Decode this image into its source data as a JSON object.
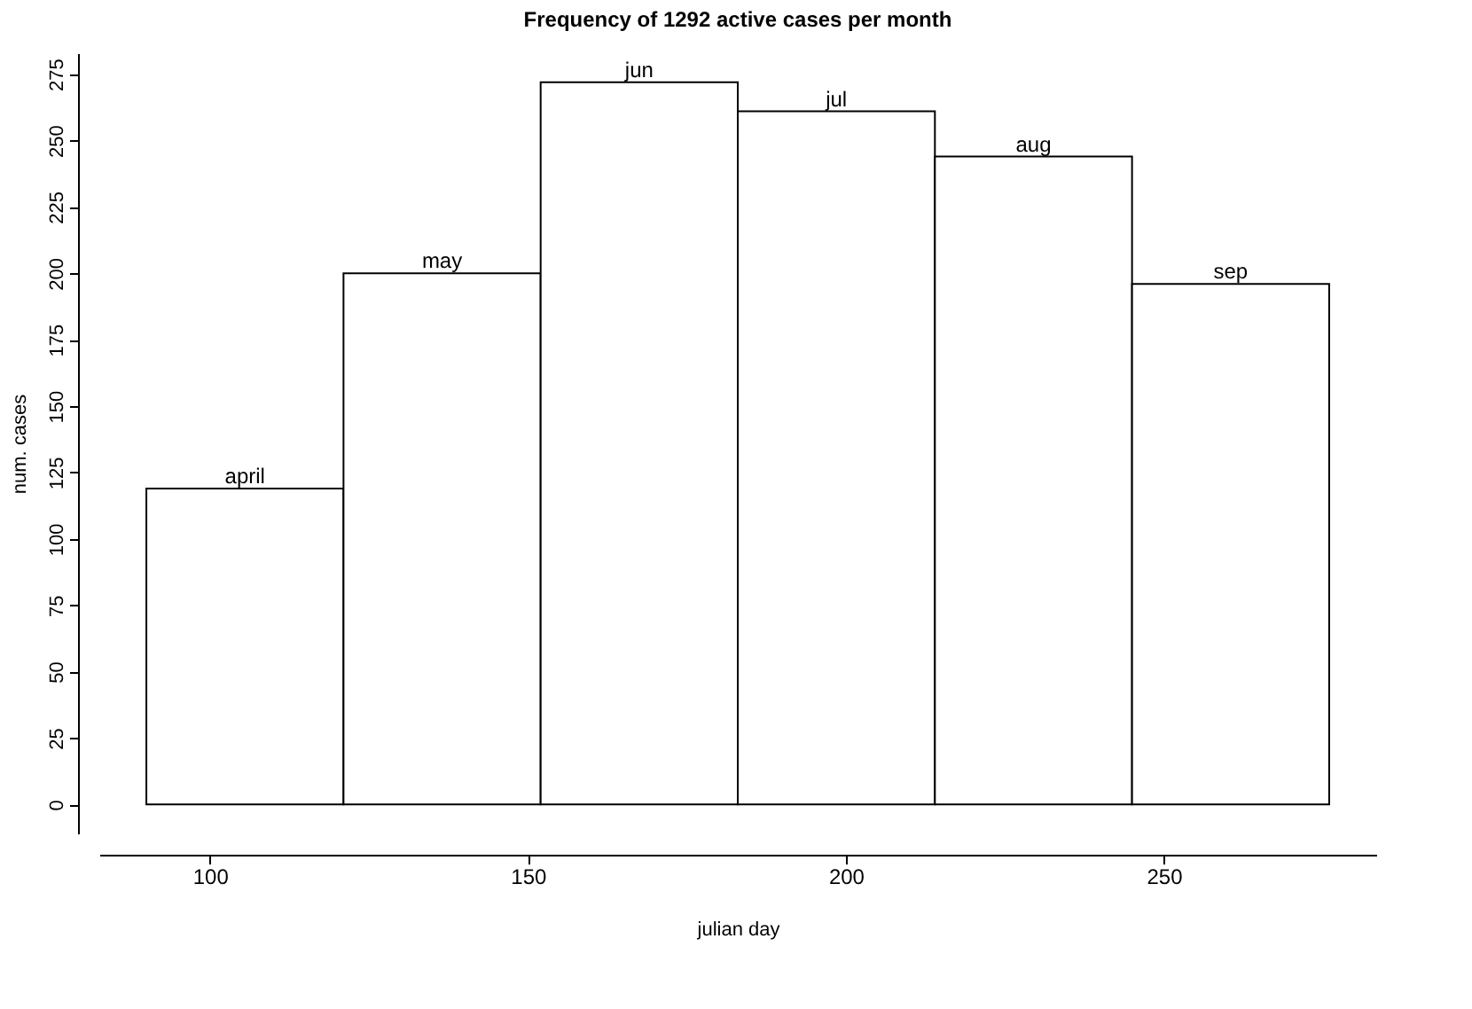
{
  "chart_data": {
    "type": "histogram",
    "title": "Frequency of 1292 active cases per month",
    "xlabel": "julian day",
    "ylabel": "num. cases",
    "bins": [
      90,
      121,
      152,
      183,
      214,
      245,
      276
    ],
    "values": [
      119,
      200,
      272,
      261,
      244,
      196
    ],
    "value_labels": [
      "april",
      "may",
      "jun",
      "jul",
      "aug",
      "sep"
    ],
    "color": "#ffffff",
    "xlim": [
      82.6,
      283.4
    ],
    "xticks": [
      100,
      150,
      200,
      250
    ],
    "ylim": [
      -10.9,
      282.9
    ],
    "yticks": [
      0,
      25,
      50,
      75,
      100,
      125,
      150,
      175,
      200,
      225,
      250,
      275
    ],
    "grid": false
  }
}
